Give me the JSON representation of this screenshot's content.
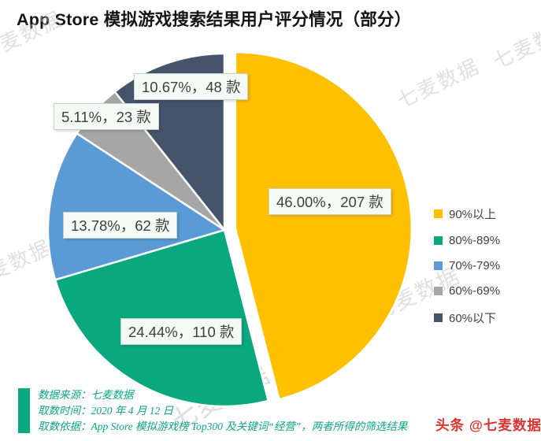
{
  "header": {
    "title": "App Store 模拟游戏搜索结果用户评分情况（部分）"
  },
  "chart_data": {
    "type": "pie",
    "title": "App Store 模拟游戏搜索结果用户评分情况（部分）",
    "legend_position": "right",
    "start_angle_deg": 0,
    "clockwise": true,
    "unit": "款",
    "series": [
      {
        "name": "90%以上",
        "value": 46.0,
        "count": 207,
        "label": "46.00%，207 款",
        "color": "#FFC000",
        "exploded": true
      },
      {
        "name": "80%-89%",
        "value": 24.44,
        "count": 110,
        "label": "24.44%，110 款",
        "color": "#0AA87E",
        "exploded": false
      },
      {
        "name": "70%-79%",
        "value": 13.78,
        "count": 62,
        "label": "13.78%，62 款",
        "color": "#5B9BD5",
        "exploded": false
      },
      {
        "name": "60%-69%",
        "value": 5.11,
        "count": 23,
        "label": "5.11%，23 款",
        "color": "#A6A6A6",
        "exploded": false
      },
      {
        "name": "60%以下",
        "value": 10.67,
        "count": 48,
        "label": "10.67%，48 款",
        "color": "#45536B",
        "exploded": false
      }
    ]
  },
  "footer": {
    "accent_color": "#0AA87E",
    "text_color": "#0DA584",
    "source": "数据来源：七麦数据",
    "time": "取数时间：2020 年 4 月 12 日",
    "basis": "取数依据：App Store 模拟游戏榜 Top300 及关键词“经营”，两者所得的筛选结果"
  },
  "branding": {
    "logo_text": "头条 @七麦数据",
    "logo_color": "#DE3430"
  },
  "watermark": {
    "text": "七麦数据"
  }
}
